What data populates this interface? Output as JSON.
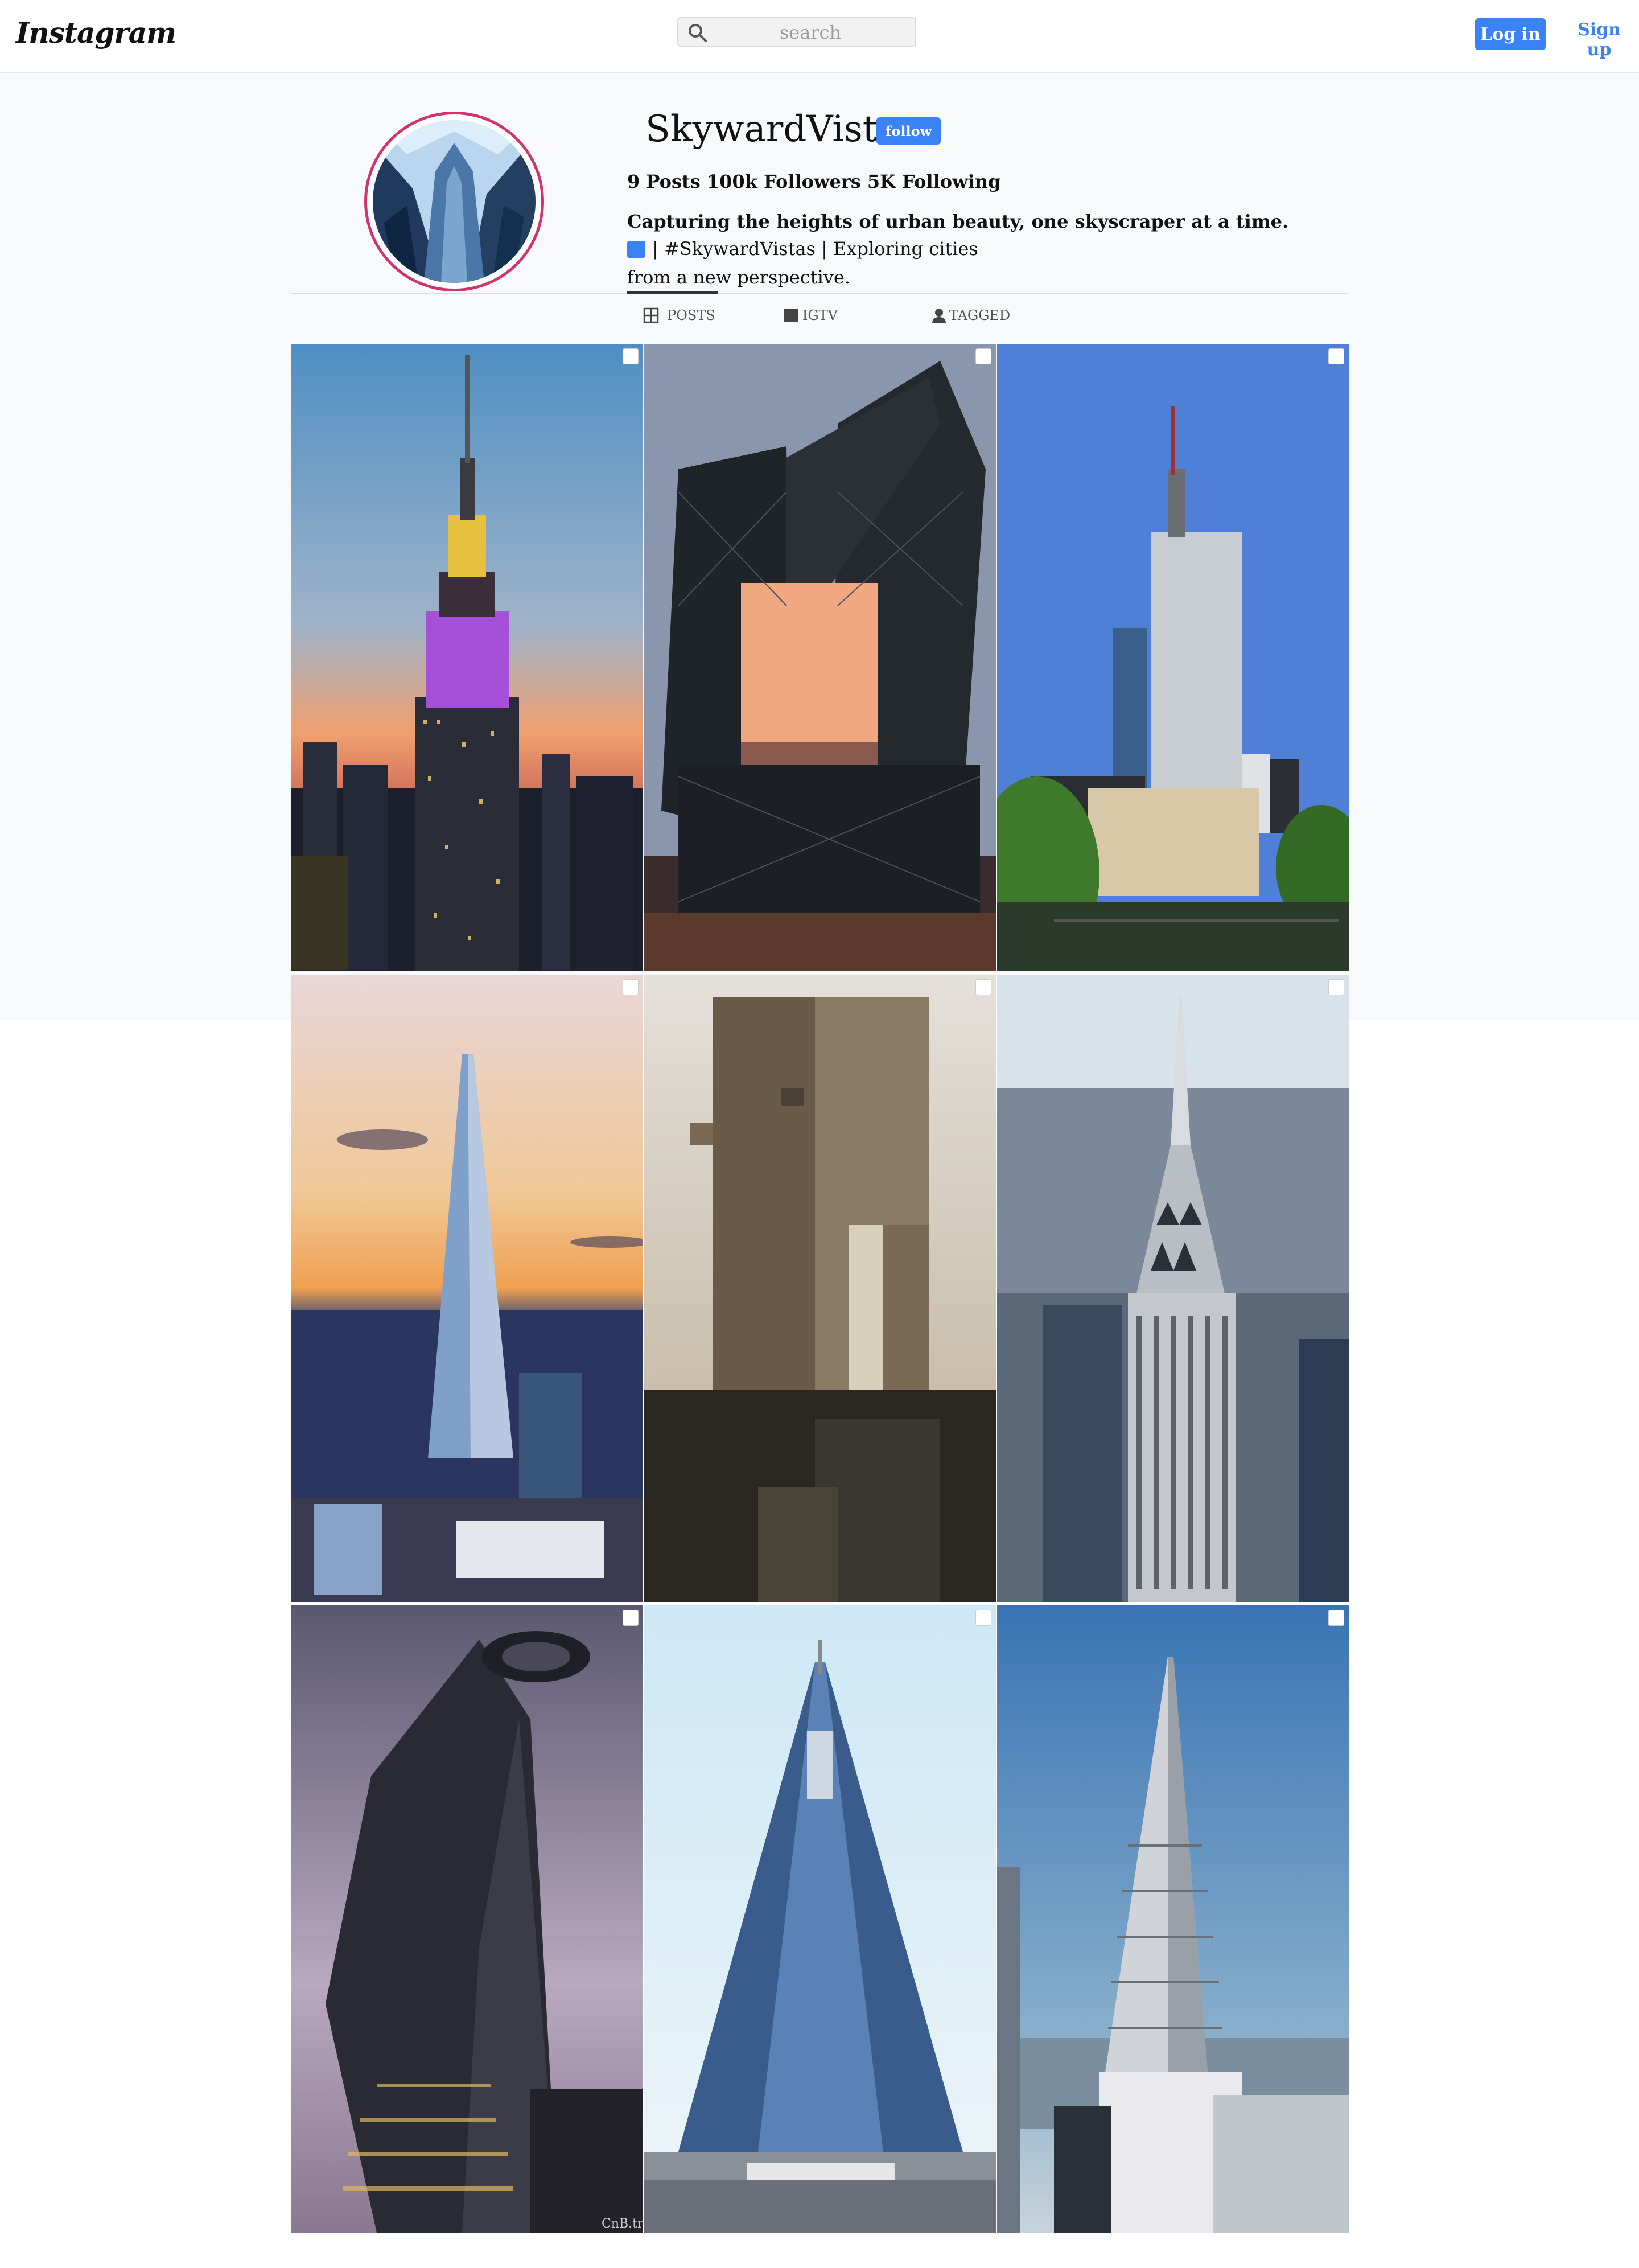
{
  "header": {
    "logo": "Instagram",
    "search_placeholder": "search",
    "login_label": "Log in",
    "signup_label": "Sign up"
  },
  "profile": {
    "username": "SkywardVistas",
    "follow_label": "follow",
    "stats": "9 Posts 100k Followers 5K Following",
    "bio_title": "Capturing the heights of urban beauty, one skyscraper at a time.",
    "bio_line1": "| #SkywardVistas | Exploring cities",
    "bio_line2": "from a new perspective."
  },
  "tabs": [
    {
      "label": "POSTS",
      "icon": "grid-icon"
    },
    {
      "label": "IGTV",
      "icon": "tv-icon"
    },
    {
      "label": "TAGGED",
      "icon": "person-icon"
    }
  ],
  "posts": [
    {
      "subject": "empire-state-building"
    },
    {
      "subject": "cctv-headquarters"
    },
    {
      "subject": "commerzbank-tower"
    },
    {
      "subject": "the-shard"
    },
    {
      "subject": "elephant-building"
    },
    {
      "subject": "chrysler-building"
    },
    {
      "subject": "bitexco-tower"
    },
    {
      "subject": "ryugyong-hotel"
    },
    {
      "subject": "transamerica-pyramid"
    }
  ],
  "watermark": "CnB.tr",
  "colors": {
    "accent": "#3b82f6",
    "avatar_ring": "#d1336e"
  }
}
